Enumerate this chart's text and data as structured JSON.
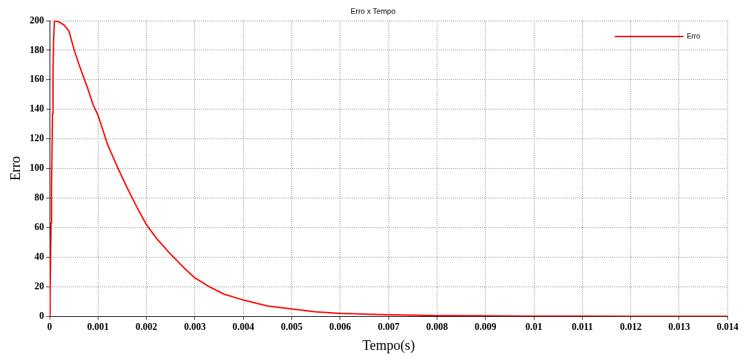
{
  "chart_data": {
    "type": "line",
    "title": "Erro x Tempo",
    "xlabel": "Tempo(s)",
    "ylabel": "Erro",
    "series": [
      {
        "name": "Erro",
        "color": "#ff0000",
        "x": [
          0,
          1e-05,
          2e-05,
          3e-05,
          4e-05,
          5e-05,
          6e-05,
          7e-05,
          8e-05,
          0.0001,
          0.0002,
          0.0003,
          0.0004,
          0.0005,
          0.0006,
          0.0007,
          0.0008,
          0.0009,
          0.001,
          0.0012,
          0.0014,
          0.0016,
          0.0018,
          0.002,
          0.0022,
          0.0025,
          0.0028,
          0.003,
          0.0033,
          0.0036,
          0.004,
          0.0045,
          0.005,
          0.0055,
          0.006,
          0.0065,
          0.007,
          0.0075,
          0.008,
          0.0083,
          0.009,
          0.01,
          0.011,
          0.012,
          0.013,
          0.014
        ],
        "values": [
          0,
          15,
          40,
          63,
          88,
          112,
          137,
          160,
          185,
          200,
          199,
          197,
          193,
          181,
          171,
          162,
          153,
          143,
          136,
          116,
          101,
          87,
          74,
          62,
          53,
          42,
          32,
          26,
          20,
          15,
          11,
          7,
          5,
          3,
          2,
          1.5,
          1,
          0.8,
          0.5,
          0.4,
          0.3,
          0.1,
          0.1,
          0,
          0,
          0
        ]
      }
    ],
    "xlim": [
      0,
      0.014
    ],
    "xticks": [
      0,
      0.001,
      0.002,
      0.003,
      0.004,
      0.005,
      0.006,
      0.007,
      0.008,
      0.009,
      0.01,
      0.011,
      0.012,
      0.013,
      0.014
    ],
    "ylim": [
      0,
      200
    ],
    "yticks": [
      0,
      20,
      40,
      60,
      80,
      100,
      120,
      140,
      160,
      180,
      200
    ],
    "grid": true,
    "legend": "top right",
    "line_style": "solid",
    "marker": "none"
  }
}
